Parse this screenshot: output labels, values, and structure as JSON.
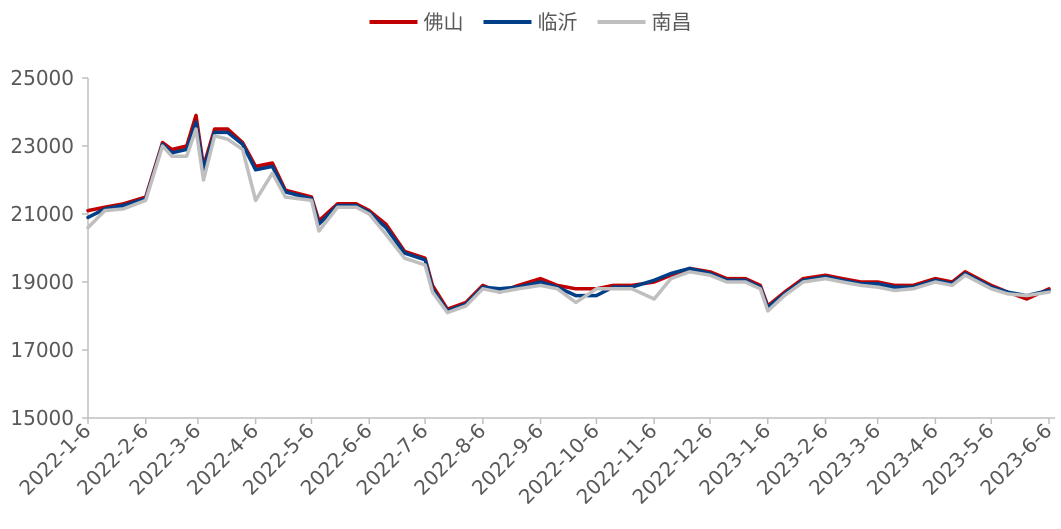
{
  "chart_data": {
    "type": "line",
    "title": "",
    "xlabel": "",
    "ylabel": "",
    "ylim": [
      15000,
      25000
    ],
    "y_ticks": [
      "15000",
      "17000",
      "19000",
      "21000",
      "23000",
      "25000"
    ],
    "x_ticks": [
      "2022-1-6",
      "2022-2-6",
      "2022-3-6",
      "2022-4-6",
      "2022-5-6",
      "2022-6-6",
      "2022-7-6",
      "2022-8-6",
      "2022-9-6",
      "2022-10-6",
      "2022-11-6",
      "2022-12-6",
      "2023-1-6",
      "2023-2-6",
      "2023-3-6",
      "2023-4-6",
      "2023-5-6",
      "2023-6-6"
    ],
    "grid": false,
    "legend_position": "top-center",
    "series": [
      {
        "name": "佛山",
        "color": "#C00000",
        "points": [
          [
            "2022-1-6",
            21100
          ],
          [
            "2022-1-15",
            21200
          ],
          [
            "2022-1-25",
            21300
          ],
          [
            "2022-2-6",
            21500
          ],
          [
            "2022-2-15",
            23100
          ],
          [
            "2022-2-20",
            22900
          ],
          [
            "2022-2-28",
            23000
          ],
          [
            "2022-3-5",
            23900
          ],
          [
            "2022-3-9",
            22400
          ],
          [
            "2022-3-15",
            23500
          ],
          [
            "2022-3-22",
            23500
          ],
          [
            "2022-3-30",
            23100
          ],
          [
            "2022-4-6",
            22400
          ],
          [
            "2022-4-15",
            22500
          ],
          [
            "2022-4-22",
            21700
          ],
          [
            "2022-5-6",
            21500
          ],
          [
            "2022-5-10",
            20800
          ],
          [
            "2022-5-20",
            21300
          ],
          [
            "2022-5-30",
            21300
          ],
          [
            "2022-6-6",
            21100
          ],
          [
            "2022-6-15",
            20700
          ],
          [
            "2022-6-25",
            19900
          ],
          [
            "2022-7-6",
            19700
          ],
          [
            "2022-7-10",
            18900
          ],
          [
            "2022-7-18",
            18200
          ],
          [
            "2022-7-28",
            18400
          ],
          [
            "2022-8-6",
            18900
          ],
          [
            "2022-8-15",
            18700
          ],
          [
            "2022-8-25",
            18900
          ],
          [
            "2022-9-6",
            19100
          ],
          [
            "2022-9-15",
            18900
          ],
          [
            "2022-9-25",
            18800
          ],
          [
            "2022-10-6",
            18800
          ],
          [
            "2022-10-15",
            18900
          ],
          [
            "2022-10-25",
            18900
          ],
          [
            "2022-11-6",
            19000
          ],
          [
            "2022-11-15",
            19200
          ],
          [
            "2022-11-25",
            19400
          ],
          [
            "2022-12-6",
            19300
          ],
          [
            "2022-12-15",
            19100
          ],
          [
            "2022-12-25",
            19100
          ],
          [
            "2023-1-2",
            18900
          ],
          [
            "2023-1-6",
            18300
          ],
          [
            "2023-1-15",
            18700
          ],
          [
            "2023-1-25",
            19100
          ],
          [
            "2023-2-6",
            19200
          ],
          [
            "2023-2-15",
            19100
          ],
          [
            "2023-2-25",
            19000
          ],
          [
            "2023-3-6",
            19000
          ],
          [
            "2023-3-15",
            18900
          ],
          [
            "2023-3-25",
            18900
          ],
          [
            "2023-4-6",
            19100
          ],
          [
            "2023-4-15",
            19000
          ],
          [
            "2023-4-22",
            19300
          ],
          [
            "2023-5-6",
            18900
          ],
          [
            "2023-5-15",
            18700
          ],
          [
            "2023-5-25",
            18500
          ],
          [
            "2023-6-6",
            18800
          ]
        ]
      },
      {
        "name": "临沂",
        "color": "#003F87",
        "points": [
          [
            "2022-1-6",
            20900
          ],
          [
            "2022-1-15",
            21150
          ],
          [
            "2022-1-25",
            21250
          ],
          [
            "2022-2-6",
            21450
          ],
          [
            "2022-2-15",
            23050
          ],
          [
            "2022-2-20",
            22800
          ],
          [
            "2022-2-28",
            22900
          ],
          [
            "2022-3-5",
            23700
          ],
          [
            "2022-3-9",
            22300
          ],
          [
            "2022-3-15",
            23400
          ],
          [
            "2022-3-22",
            23400
          ],
          [
            "2022-3-30",
            23050
          ],
          [
            "2022-4-6",
            22300
          ],
          [
            "2022-4-15",
            22400
          ],
          [
            "2022-4-22",
            21650
          ],
          [
            "2022-5-6",
            21450
          ],
          [
            "2022-5-10",
            20700
          ],
          [
            "2022-5-20",
            21250
          ],
          [
            "2022-5-30",
            21250
          ],
          [
            "2022-6-6",
            21050
          ],
          [
            "2022-6-15",
            20600
          ],
          [
            "2022-6-25",
            19850
          ],
          [
            "2022-7-6",
            19650
          ],
          [
            "2022-7-10",
            18800
          ],
          [
            "2022-7-18",
            18150
          ],
          [
            "2022-7-28",
            18350
          ],
          [
            "2022-8-6",
            18850
          ],
          [
            "2022-8-15",
            18800
          ],
          [
            "2022-8-25",
            18850
          ],
          [
            "2022-9-6",
            19000
          ],
          [
            "2022-9-15",
            18850
          ],
          [
            "2022-9-25",
            18600
          ],
          [
            "2022-10-6",
            18600
          ],
          [
            "2022-10-15",
            18850
          ],
          [
            "2022-10-25",
            18850
          ],
          [
            "2022-11-6",
            19050
          ],
          [
            "2022-11-15",
            19250
          ],
          [
            "2022-11-25",
            19400
          ],
          [
            "2022-12-6",
            19250
          ],
          [
            "2022-12-15",
            19050
          ],
          [
            "2022-12-25",
            19050
          ],
          [
            "2023-1-2",
            18850
          ],
          [
            "2023-1-6",
            18250
          ],
          [
            "2023-1-15",
            18650
          ],
          [
            "2023-1-25",
            19050
          ],
          [
            "2023-2-6",
            19150
          ],
          [
            "2023-2-15",
            19050
          ],
          [
            "2023-2-25",
            18950
          ],
          [
            "2023-3-6",
            18950
          ],
          [
            "2023-3-15",
            18850
          ],
          [
            "2023-3-25",
            18850
          ],
          [
            "2023-4-6",
            19050
          ],
          [
            "2023-4-15",
            18950
          ],
          [
            "2023-4-22",
            19250
          ],
          [
            "2023-5-6",
            18850
          ],
          [
            "2023-5-15",
            18700
          ],
          [
            "2023-5-25",
            18600
          ],
          [
            "2023-6-6",
            18750
          ]
        ]
      },
      {
        "name": "南昌",
        "color": "#BFBFBF",
        "points": [
          [
            "2022-1-6",
            20600
          ],
          [
            "2022-1-15",
            21100
          ],
          [
            "2022-1-25",
            21150
          ],
          [
            "2022-2-6",
            21400
          ],
          [
            "2022-2-15",
            23000
          ],
          [
            "2022-2-20",
            22700
          ],
          [
            "2022-2-28",
            22700
          ],
          [
            "2022-3-5",
            23500
          ],
          [
            "2022-3-9",
            22000
          ],
          [
            "2022-3-15",
            23300
          ],
          [
            "2022-3-22",
            23200
          ],
          [
            "2022-3-30",
            22900
          ],
          [
            "2022-4-6",
            21400
          ],
          [
            "2022-4-15",
            22200
          ],
          [
            "2022-4-22",
            21500
          ],
          [
            "2022-5-6",
            21400
          ],
          [
            "2022-5-10",
            20500
          ],
          [
            "2022-5-20",
            21200
          ],
          [
            "2022-5-30",
            21200
          ],
          [
            "2022-6-6",
            21000
          ],
          [
            "2022-6-15",
            20400
          ],
          [
            "2022-6-25",
            19700
          ],
          [
            "2022-7-6",
            19500
          ],
          [
            "2022-7-10",
            18700
          ],
          [
            "2022-7-18",
            18100
          ],
          [
            "2022-7-28",
            18300
          ],
          [
            "2022-8-6",
            18800
          ],
          [
            "2022-8-15",
            18700
          ],
          [
            "2022-8-25",
            18800
          ],
          [
            "2022-9-6",
            18900
          ],
          [
            "2022-9-15",
            18800
          ],
          [
            "2022-9-25",
            18400
          ],
          [
            "2022-10-6",
            18800
          ],
          [
            "2022-10-15",
            18800
          ],
          [
            "2022-10-25",
            18800
          ],
          [
            "2022-11-6",
            18500
          ],
          [
            "2022-11-15",
            19100
          ],
          [
            "2022-11-25",
            19300
          ],
          [
            "2022-12-6",
            19200
          ],
          [
            "2022-12-15",
            19000
          ],
          [
            "2022-12-25",
            19000
          ],
          [
            "2023-1-2",
            18800
          ],
          [
            "2023-1-6",
            18150
          ],
          [
            "2023-1-15",
            18600
          ],
          [
            "2023-1-25",
            19000
          ],
          [
            "2023-2-6",
            19100
          ],
          [
            "2023-2-15",
            19000
          ],
          [
            "2023-2-25",
            18900
          ],
          [
            "2023-3-6",
            18850
          ],
          [
            "2023-3-15",
            18750
          ],
          [
            "2023-3-25",
            18800
          ],
          [
            "2023-4-6",
            19000
          ],
          [
            "2023-4-15",
            18900
          ],
          [
            "2023-4-22",
            19200
          ],
          [
            "2023-5-6",
            18800
          ],
          [
            "2023-5-15",
            18650
          ],
          [
            "2023-5-25",
            18600
          ],
          [
            "2023-6-6",
            18700
          ]
        ]
      }
    ]
  }
}
